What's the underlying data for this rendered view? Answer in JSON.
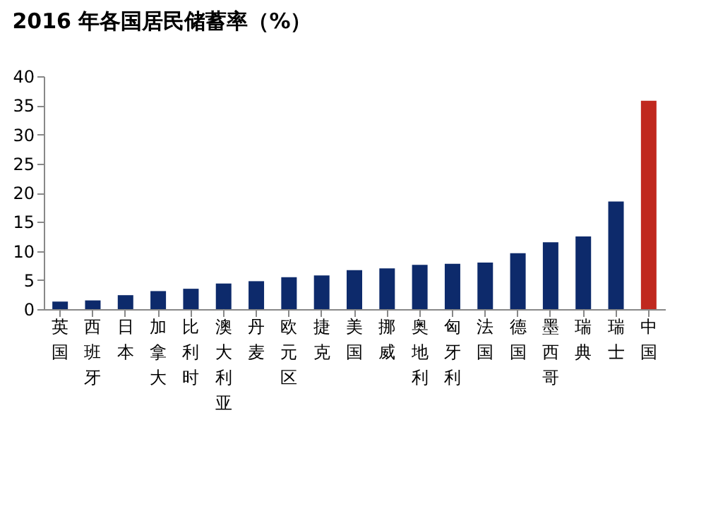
{
  "chart_data": {
    "type": "bar",
    "title": "2016 年各国居民储蓄率（%）",
    "categories": [
      "英国",
      "西班牙",
      "日本",
      "加拿大",
      "比利时",
      "澳大利亚",
      "丹麦",
      "欧元区",
      "捷克",
      "美国",
      "挪威",
      "奥地利",
      "匈牙利",
      "法国",
      "德国",
      "墨西哥",
      "瑞典",
      "瑞士",
      "中国"
    ],
    "values": [
      1.3,
      1.5,
      2.4,
      3.1,
      3.5,
      4.4,
      4.8,
      5.5,
      5.8,
      6.7,
      7.0,
      7.6,
      7.8,
      8.0,
      9.6,
      11.5,
      12.5,
      18.5,
      35.8
    ],
    "colors": [
      "#0d2a6b",
      "#0d2a6b",
      "#0d2a6b",
      "#0d2a6b",
      "#0d2a6b",
      "#0d2a6b",
      "#0d2a6b",
      "#0d2a6b",
      "#0d2a6b",
      "#0d2a6b",
      "#0d2a6b",
      "#0d2a6b",
      "#0d2a6b",
      "#0d2a6b",
      "#0d2a6b",
      "#0d2a6b",
      "#0d2a6b",
      "#0d2a6b",
      "#c0281e"
    ],
    "ylim": [
      0,
      40
    ],
    "yticks": [
      0,
      5,
      10,
      15,
      20,
      25,
      30,
      35,
      40
    ],
    "grid": false
  }
}
